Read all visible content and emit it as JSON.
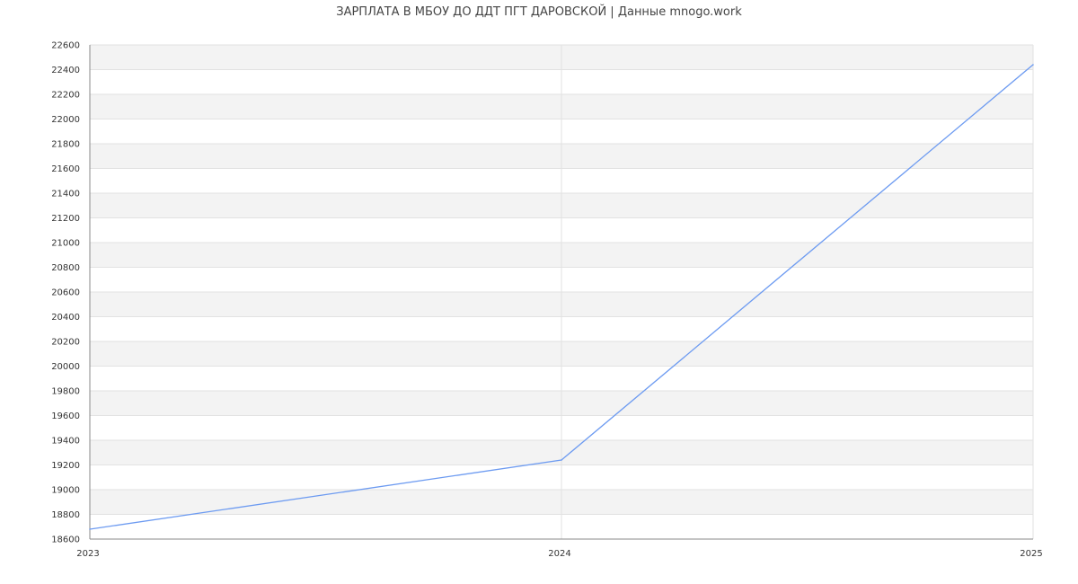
{
  "chart_data": {
    "type": "line",
    "title": "ЗАРПЛАТА В МБОУ ДО ДДТ ПГТ ДАРОВСКОЙ | Данные mnogo.work",
    "xlabel": "",
    "ylabel": "",
    "x": [
      2023,
      2024,
      2025
    ],
    "series": [
      {
        "values": [
          18680,
          19240,
          22440
        ],
        "color": "#6d9bf1"
      }
    ],
    "xticks": [
      "2023",
      "2024",
      "2025"
    ],
    "xlim": [
      2023,
      2025
    ],
    "ylim": [
      18600,
      22600
    ],
    "ytick_step": 200,
    "grid": true,
    "band_colors": [
      "#f3f3f3",
      "#ffffff"
    ],
    "legend": "none"
  }
}
